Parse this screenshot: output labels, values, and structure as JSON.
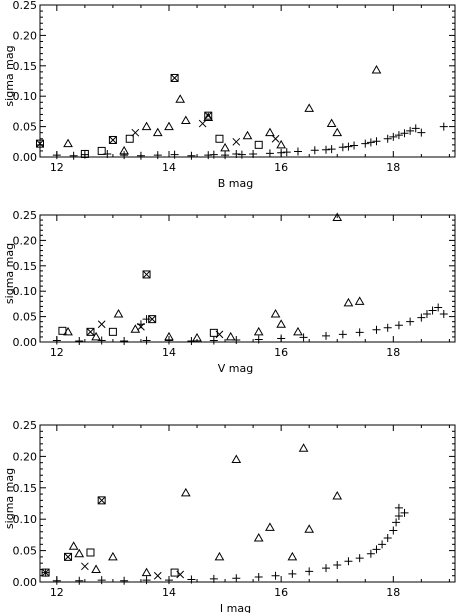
{
  "chart_data": [
    {
      "type": "scatter",
      "xlabel": "B mag",
      "ylabel": "sigma mag",
      "xlim": [
        11.7,
        19.1
      ],
      "ylim": [
        0,
        0.25
      ],
      "xticks": [
        "12",
        "14",
        "16",
        "18"
      ],
      "yticks": [
        "0.00",
        "0.05",
        "0.10",
        "0.15",
        "0.20",
        "0.25"
      ],
      "series": [
        {
          "marker": "plus",
          "values": [
            [
              11.7,
              0.02
            ],
            [
              12.0,
              0.003
            ],
            [
              12.3,
              0.002
            ],
            [
              12.5,
              0.004
            ],
            [
              12.9,
              0.005
            ],
            [
              13.2,
              0.003
            ],
            [
              13.5,
              0.002
            ],
            [
              13.8,
              0.003
            ],
            [
              14.1,
              0.004
            ],
            [
              14.4,
              0.002
            ],
            [
              14.7,
              0.003
            ],
            [
              15.0,
              0.003
            ],
            [
              15.3,
              0.004
            ],
            [
              15.5,
              0.005
            ],
            [
              15.8,
              0.006
            ],
            [
              16.0,
              0.007
            ],
            [
              16.3,
              0.009
            ],
            [
              16.6,
              0.011
            ],
            [
              16.9,
              0.013
            ],
            [
              17.1,
              0.016
            ],
            [
              17.3,
              0.019
            ],
            [
              17.5,
              0.022
            ],
            [
              17.7,
              0.026
            ],
            [
              17.9,
              0.03
            ],
            [
              18.0,
              0.033
            ],
            [
              18.1,
              0.036
            ],
            [
              18.2,
              0.039
            ],
            [
              18.3,
              0.043
            ],
            [
              18.4,
              0.047
            ],
            [
              18.5,
              0.04
            ],
            [
              18.9,
              0.05
            ],
            [
              14.8,
              0.004
            ],
            [
              15.2,
              0.005
            ],
            [
              16.1,
              0.008
            ],
            [
              16.8,
              0.012
            ],
            [
              17.2,
              0.017
            ],
            [
              17.6,
              0.024
            ]
          ]
        },
        {
          "marker": "triangle",
          "values": [
            [
              12.2,
              0.022
            ],
            [
              13.2,
              0.01
            ],
            [
              13.6,
              0.05
            ],
            [
              13.8,
              0.04
            ],
            [
              14.0,
              0.05
            ],
            [
              14.2,
              0.095
            ],
            [
              14.3,
              0.06
            ],
            [
              14.7,
              0.065
            ],
            [
              15.0,
              0.015
            ],
            [
              15.4,
              0.035
            ],
            [
              15.8,
              0.04
            ],
            [
              16.0,
              0.02
            ],
            [
              16.5,
              0.08
            ],
            [
              16.9,
              0.055
            ],
            [
              17.0,
              0.04
            ],
            [
              17.7,
              0.143
            ]
          ]
        },
        {
          "marker": "square",
          "values": [
            [
              11.7,
              0.022
            ],
            [
              12.5,
              0.005
            ],
            [
              12.8,
              0.01
            ],
            [
              13.0,
              0.028
            ],
            [
              13.3,
              0.03
            ],
            [
              14.1,
              0.13
            ],
            [
              14.7,
              0.068
            ],
            [
              14.9,
              0.03
            ],
            [
              15.6,
              0.02
            ]
          ]
        },
        {
          "marker": "cross",
          "values": [
            [
              11.7,
              0.022
            ],
            [
              13.0,
              0.028
            ],
            [
              13.4,
              0.04
            ],
            [
              14.1,
              0.13
            ],
            [
              14.6,
              0.055
            ],
            [
              14.7,
              0.068
            ],
            [
              15.2,
              0.025
            ],
            [
              15.9,
              0.03
            ]
          ]
        }
      ]
    },
    {
      "type": "scatter",
      "xlabel": "V mag",
      "ylabel": "sigma mag",
      "xlim": [
        11.7,
        19.1
      ],
      "ylim": [
        0,
        0.25
      ],
      "xticks": [
        "12",
        "14",
        "16",
        "18"
      ],
      "yticks": [
        "0.00",
        "0.05",
        "0.10",
        "0.15",
        "0.20",
        "0.25"
      ],
      "series": [
        {
          "marker": "plus",
          "values": [
            [
              12.0,
              0.003
            ],
            [
              12.4,
              0.002
            ],
            [
              12.8,
              0.003
            ],
            [
              13.2,
              0.002
            ],
            [
              13.6,
              0.003
            ],
            [
              14.0,
              0.003
            ],
            [
              14.4,
              0.002
            ],
            [
              14.8,
              0.003
            ],
            [
              15.2,
              0.004
            ],
            [
              15.6,
              0.005
            ],
            [
              16.0,
              0.007
            ],
            [
              16.4,
              0.009
            ],
            [
              16.8,
              0.012
            ],
            [
              17.1,
              0.015
            ],
            [
              17.4,
              0.019
            ],
            [
              17.7,
              0.024
            ],
            [
              17.9,
              0.028
            ],
            [
              18.1,
              0.033
            ],
            [
              18.3,
              0.04
            ],
            [
              18.5,
              0.048
            ],
            [
              18.6,
              0.055
            ],
            [
              18.7,
              0.062
            ],
            [
              18.8,
              0.068
            ],
            [
              18.9,
              0.055
            ],
            [
              13.5,
              0.035
            ],
            [
              13.6,
              0.045
            ]
          ]
        },
        {
          "marker": "triangle",
          "values": [
            [
              12.2,
              0.02
            ],
            [
              12.7,
              0.01
            ],
            [
              13.1,
              0.055
            ],
            [
              13.4,
              0.025
            ],
            [
              14.0,
              0.01
            ],
            [
              14.5,
              0.008
            ],
            [
              15.1,
              0.01
            ],
            [
              15.6,
              0.02
            ],
            [
              15.9,
              0.055
            ],
            [
              16.0,
              0.035
            ],
            [
              16.3,
              0.02
            ],
            [
              17.0,
              0.245
            ],
            [
              17.2,
              0.077
            ],
            [
              17.4,
              0.08
            ]
          ]
        },
        {
          "marker": "square",
          "values": [
            [
              12.1,
              0.022
            ],
            [
              12.6,
              0.02
            ],
            [
              13.0,
              0.02
            ],
            [
              13.6,
              0.133
            ],
            [
              13.7,
              0.045
            ],
            [
              14.8,
              0.018
            ]
          ]
        },
        {
          "marker": "cross",
          "values": [
            [
              12.6,
              0.02
            ],
            [
              12.8,
              0.035
            ],
            [
              13.6,
              0.133
            ],
            [
              13.7,
              0.045
            ],
            [
              13.5,
              0.03
            ],
            [
              14.9,
              0.015
            ]
          ]
        }
      ]
    },
    {
      "type": "scatter",
      "xlabel": "I mag",
      "ylabel": "sigma mag",
      "xlim": [
        11.7,
        19.1
      ],
      "ylim": [
        0,
        0.25
      ],
      "xticks": [
        "12",
        "14",
        "16",
        "18"
      ],
      "yticks": [
        "0.00",
        "0.05",
        "0.10",
        "0.15",
        "0.20",
        "0.25"
      ],
      "series": [
        {
          "marker": "plus",
          "values": [
            [
              11.8,
              0.015
            ],
            [
              12.0,
              0.002
            ],
            [
              12.4,
              0.002
            ],
            [
              12.8,
              0.003
            ],
            [
              13.2,
              0.002
            ],
            [
              13.6,
              0.003
            ],
            [
              14.0,
              0.003
            ],
            [
              14.4,
              0.004
            ],
            [
              14.8,
              0.005
            ],
            [
              15.2,
              0.006
            ],
            [
              15.6,
              0.008
            ],
            [
              15.9,
              0.01
            ],
            [
              16.2,
              0.013
            ],
            [
              16.5,
              0.017
            ],
            [
              16.8,
              0.022
            ],
            [
              17.0,
              0.027
            ],
            [
              17.2,
              0.033
            ],
            [
              17.4,
              0.038
            ],
            [
              17.6,
              0.045
            ],
            [
              17.7,
              0.052
            ],
            [
              17.8,
              0.06
            ],
            [
              17.9,
              0.07
            ],
            [
              18.0,
              0.082
            ],
            [
              18.05,
              0.095
            ],
            [
              18.1,
              0.105
            ],
            [
              18.2,
              0.11
            ],
            [
              18.1,
              0.118
            ]
          ]
        },
        {
          "marker": "triangle",
          "values": [
            [
              12.3,
              0.057
            ],
            [
              12.4,
              0.045
            ],
            [
              12.7,
              0.02
            ],
            [
              13.0,
              0.04
            ],
            [
              13.6,
              0.015
            ],
            [
              14.3,
              0.142
            ],
            [
              14.9,
              0.04
            ],
            [
              15.2,
              0.195
            ],
            [
              15.6,
              0.07
            ],
            [
              15.8,
              0.087
            ],
            [
              16.2,
              0.04
            ],
            [
              16.4,
              0.213
            ],
            [
              16.5,
              0.084
            ],
            [
              17.0,
              0.137
            ]
          ]
        },
        {
          "marker": "square",
          "values": [
            [
              11.8,
              0.015
            ],
            [
              12.2,
              0.04
            ],
            [
              12.6,
              0.047
            ],
            [
              12.8,
              0.13
            ],
            [
              14.1,
              0.015
            ]
          ]
        },
        {
          "marker": "cross",
          "values": [
            [
              11.8,
              0.015
            ],
            [
              12.2,
              0.04
            ],
            [
              12.5,
              0.025
            ],
            [
              12.8,
              0.13
            ],
            [
              13.8,
              0.01
            ],
            [
              14.2,
              0.012
            ]
          ]
        }
      ]
    }
  ]
}
